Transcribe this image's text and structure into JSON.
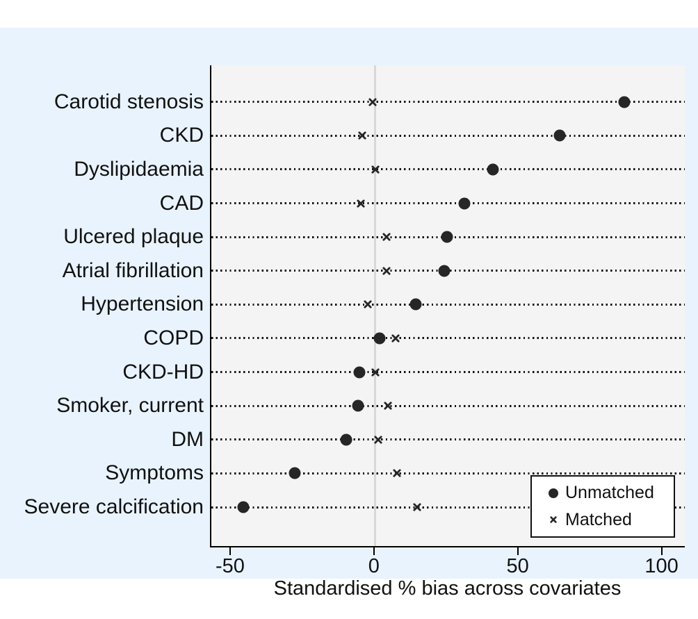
{
  "figure": {
    "outer_background": "#e9f3fd",
    "plot_background": "#f4f4f4",
    "marker_color": "#262626",
    "zero_line_color": "#d8d8d8",
    "axis_color": "#000000",
    "text_color": "#111111"
  },
  "chart_data": {
    "type": "scatter",
    "title": "",
    "xlabel": "Standardised % bias across covariates",
    "ylabel": "",
    "xlim": [
      -57,
      107.6
    ],
    "x_ticks": [
      -50,
      0,
      50,
      100
    ],
    "grid": "horizontal dotted leader line per category",
    "zero_reference_line": 0,
    "legend_position": "inside bottom-right",
    "categories": [
      "Carotid stenosis",
      "CKD",
      "Dyslipidaemia",
      "CAD",
      "Ulcered plaque",
      "Atrial fibrillation",
      "Hypertension",
      "COPD",
      "CKD-HD",
      "Smoker, current",
      "DM",
      "Symptoms",
      "Severe calcification"
    ],
    "series": [
      {
        "name": "Unmatched",
        "marker": "circle",
        "values": [
          86.5,
          64,
          41,
          31,
          25,
          24,
          14,
          1.5,
          -5.5,
          -6,
          -10,
          -28,
          -46
        ]
      },
      {
        "name": "Matched",
        "marker": "x",
        "values": [
          -1,
          -4.5,
          0,
          -5,
          4,
          4,
          -2.5,
          7,
          0,
          4.5,
          1,
          7.5,
          14.5
        ]
      }
    ]
  },
  "legend": {
    "items": [
      {
        "marker": "circle",
        "label": "Unmatched"
      },
      {
        "marker": "x",
        "label": "Matched"
      }
    ]
  }
}
